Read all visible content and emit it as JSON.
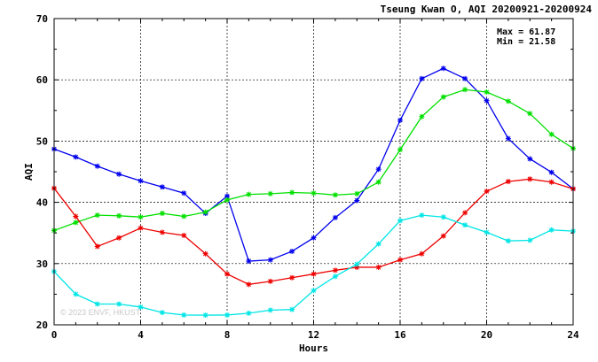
{
  "chart_data": {
    "type": "line",
    "title": "Tseung Kwan O, AQI 20200921-20200924",
    "xlabel": "Hours",
    "ylabel": "AQI",
    "xlim": [
      0,
      24
    ],
    "ylim": [
      20,
      70
    ],
    "xticks": [
      0,
      4,
      8,
      12,
      16,
      20,
      24
    ],
    "yticks": [
      20,
      30,
      40,
      50,
      60,
      70
    ],
    "grid": true,
    "marker": "asterisk",
    "stats": {
      "max_label": "Max = 61.87",
      "min_label": "Min = 21.58"
    },
    "watermark": "© 2023 ENVF, HKUST",
    "x": [
      0,
      1,
      2,
      3,
      4,
      5,
      6,
      7,
      8,
      9,
      10,
      11,
      12,
      13,
      14,
      15,
      16,
      17,
      18,
      19,
      20,
      21,
      22,
      23,
      24
    ],
    "series": [
      {
        "color": "#0000ee",
        "values": [
          48.7,
          47.4,
          45.9,
          44.6,
          43.5,
          42.5,
          41.5,
          38.2,
          41.0,
          30.4,
          30.6,
          32.0,
          34.2,
          37.5,
          40.3,
          45.4,
          53.4,
          60.2,
          61.87,
          60.2,
          56.6,
          50.4,
          47.1,
          44.9,
          42.2
        ]
      },
      {
        "color": "#00e000",
        "values": [
          35.4,
          36.7,
          37.9,
          37.8,
          37.6,
          38.2,
          37.7,
          38.4,
          40.4,
          41.3,
          41.4,
          41.6,
          41.5,
          41.2,
          41.4,
          43.3,
          48.6,
          54.0,
          57.2,
          58.4,
          58.0,
          56.5,
          54.5,
          51.1,
          48.8
        ]
      },
      {
        "color": "#ee0000",
        "values": [
          42.3,
          37.7,
          32.8,
          34.2,
          35.8,
          35.1,
          34.6,
          31.6,
          28.3,
          26.6,
          27.1,
          27.7,
          28.3,
          28.9,
          29.4,
          29.4,
          30.6,
          31.6,
          34.5,
          38.3,
          41.8,
          43.4,
          43.8,
          43.3,
          42.2
        ]
      },
      {
        "color": "#00e5e5",
        "values": [
          28.7,
          25.0,
          23.4,
          23.4,
          22.9,
          22.0,
          21.6,
          21.58,
          21.6,
          21.9,
          22.4,
          22.5,
          25.6,
          27.9,
          29.9,
          33.2,
          37.0,
          37.9,
          37.6,
          36.3,
          35.1,
          33.7,
          33.8,
          35.5,
          35.3
        ]
      }
    ]
  }
}
